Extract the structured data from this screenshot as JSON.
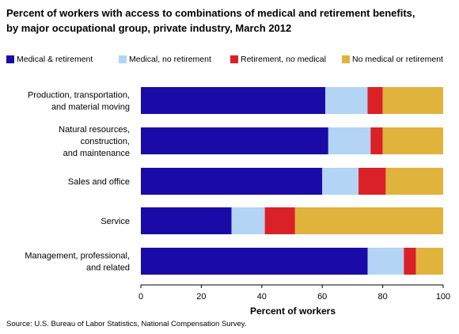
{
  "title_line1": "Percent of workers with access to combinations of medical and retirement benefits,",
  "title_line2": "by major occupational group, private industry, March 2012",
  "source": "Source: U.S. Bureau of Labor Statistics, National Compensation Survey.",
  "chart_data": {
    "type": "bar",
    "orientation": "horizontal",
    "stacked": true,
    "title": "Percent of workers with access to combinations of medical and retirement benefits, by major occupational group, private industry, March 2012",
    "xlabel": "Percent of workers",
    "ylabel": "",
    "xlim": [
      0,
      100
    ],
    "xticks": [
      "0",
      "20",
      "40",
      "60",
      "80",
      "100"
    ],
    "grid": false,
    "legend_position": "top",
    "categories": [
      [
        "Production, transportation,",
        "and material moving"
      ],
      [
        "Natural resources,",
        "construction,",
        "and maintenance"
      ],
      [
        "Sales and office"
      ],
      [
        "Service"
      ],
      [
        "Management, professional,",
        "and related"
      ]
    ],
    "series": [
      {
        "name": "Medical & retirement",
        "color": "#1a0aa8",
        "values": [
          61,
          62,
          60,
          30,
          75
        ]
      },
      {
        "name": "Medical, no retirement",
        "color": "#b3d4f5",
        "values": [
          14,
          14,
          12,
          11,
          12
        ]
      },
      {
        "name": "Retirement, no medical",
        "color": "#da2128",
        "values": [
          5,
          4,
          9,
          10,
          4
        ]
      },
      {
        "name": "No medical or retirement",
        "color": "#e0b43c",
        "values": [
          20,
          20,
          19,
          49,
          9
        ]
      }
    ]
  }
}
